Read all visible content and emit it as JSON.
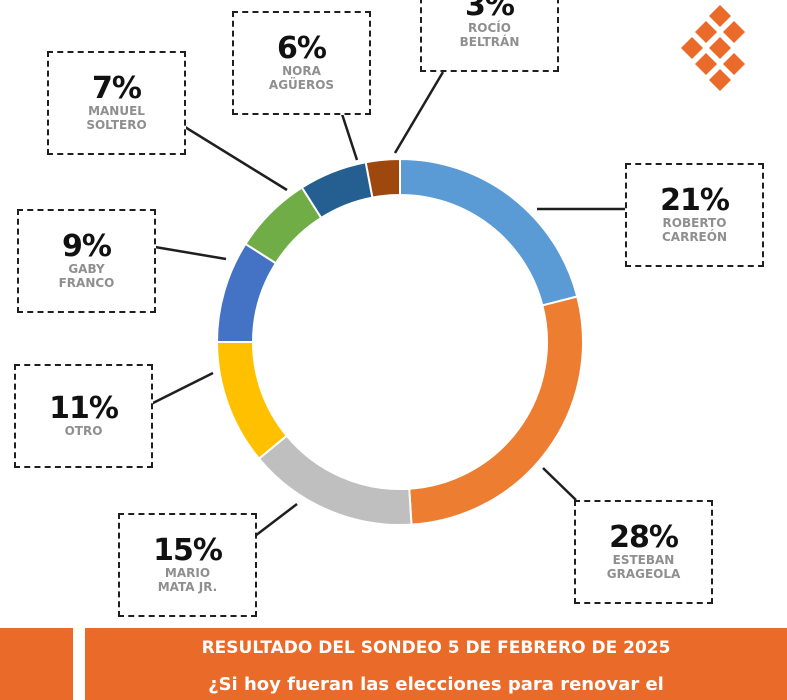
{
  "chart_data": {
    "type": "pie",
    "slices": [
      {
        "label": "ROBERTO\nCARREÓN",
        "pct_label": "21%",
        "value": 21,
        "color": "#5b9bd5"
      },
      {
        "label": "ESTEBAN\nGRAGEOLA",
        "pct_label": "28%",
        "value": 28,
        "color": "#ed7d31"
      },
      {
        "label": "MARIO\nMATA JR.",
        "pct_label": "15%",
        "value": 15,
        "color": "#bfbfbf"
      },
      {
        "label": "OTRO",
        "pct_label": "11%",
        "value": 11,
        "color": "#ffc000"
      },
      {
        "label": "GABY\nFRANCO",
        "pct_label": "9%",
        "value": 9,
        "color": "#4472c4"
      },
      {
        "label": "MANUEL\nSOLTERO",
        "pct_label": "7%",
        "value": 7,
        "color": "#70ad47"
      },
      {
        "label": "NORA\nAGÜEROS",
        "pct_label": "6%",
        "value": 6,
        "color": "#255e91"
      },
      {
        "label": "ROCÍO\nBELTRÁN",
        "pct_label": "3%",
        "value": 3,
        "color": "#9e480e"
      }
    ]
  },
  "footer": {
    "title": "RESULTADO DEL SONDEO 5 DE FEBRERO DE 2025",
    "question": "¿Si hoy fueran las elecciones para renovar el"
  },
  "logo": {
    "color": "#ea6a2a"
  }
}
